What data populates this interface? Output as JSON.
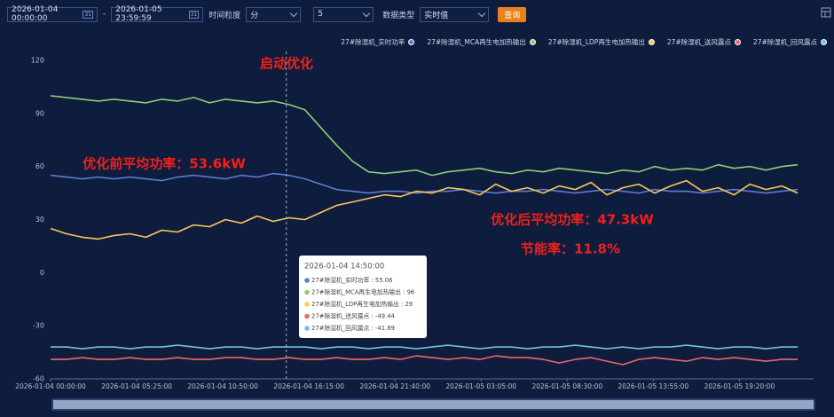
{
  "controls": {
    "start": "2026-01-04 00:00:00",
    "end": "2026-01-05 23:59:59",
    "calendar_icon": "31",
    "granularity_label": "时间粒度",
    "granularity": "分",
    "step": "5",
    "type_label": "数据类型",
    "type": "实时值",
    "query": "查询"
  },
  "chart_data": {
    "type": "line",
    "x": [
      "2026-01-04 00:00:00",
      "2026-01-04 01:00:00",
      "2026-01-04 02:00:00",
      "2026-01-04 03:00:00",
      "2026-01-04 04:00:00",
      "2026-01-04 05:00:00",
      "2026-01-04 06:00:00",
      "2026-01-04 07:00:00",
      "2026-01-04 08:00:00",
      "2026-01-04 09:00:00",
      "2026-01-04 10:00:00",
      "2026-01-04 11:00:00",
      "2026-01-04 12:00:00",
      "2026-01-04 13:00:00",
      "2026-01-04 14:00:00",
      "2026-01-04 15:00:00",
      "2026-01-04 16:00:00",
      "2026-01-04 17:00:00",
      "2026-01-04 18:00:00",
      "2026-01-04 19:00:00",
      "2026-01-04 20:00:00",
      "2026-01-04 21:00:00",
      "2026-01-04 22:00:00",
      "2026-01-04 23:00:00",
      "2026-01-05 00:00:00",
      "2026-01-05 01:00:00",
      "2026-01-05 02:00:00",
      "2026-01-05 03:00:00",
      "2026-01-05 04:00:00",
      "2026-01-05 05:00:00",
      "2026-01-05 06:00:00",
      "2026-01-05 07:00:00",
      "2026-01-05 08:00:00",
      "2026-01-05 09:00:00",
      "2026-01-05 10:00:00",
      "2026-01-05 11:00:00",
      "2026-01-05 12:00:00",
      "2026-01-05 13:00:00",
      "2026-01-05 14:00:00",
      "2026-01-05 15:00:00",
      "2026-01-05 16:00:00",
      "2026-01-05 17:00:00",
      "2026-01-05 18:00:00",
      "2026-01-05 19:00:00",
      "2026-01-05 20:00:00",
      "2026-01-05 21:00:00",
      "2026-01-05 22:00:00",
      "2026-01-05 23:00:00"
    ],
    "series": [
      {
        "name": "27#除湿机_实时功率",
        "color": "#5b7bd5",
        "values": [
          55,
          54,
          53,
          54,
          53,
          54,
          53,
          52,
          54,
          55,
          54,
          53,
          55,
          54,
          56,
          55,
          53,
          50,
          47,
          46,
          45,
          46,
          46,
          45,
          46,
          46,
          47,
          46,
          45,
          46,
          46,
          47,
          46,
          45,
          46,
          47,
          46,
          45,
          47,
          46,
          46,
          45,
          46,
          47,
          46,
          45,
          46,
          47
        ]
      },
      {
        "name": "27#除湿机_MCA再生电加热输出",
        "color": "#91cc75",
        "values": [
          100,
          99,
          98,
          97,
          98,
          97,
          96,
          98,
          97,
          99,
          96,
          98,
          97,
          96,
          97,
          95,
          92,
          82,
          72,
          63,
          57,
          56,
          57,
          58,
          55,
          57,
          58,
          59,
          57,
          56,
          58,
          57,
          59,
          58,
          57,
          56,
          58,
          57,
          60,
          58,
          59,
          58,
          61,
          59,
          60,
          58,
          60,
          61
        ]
      },
      {
        "name": "27#除湿机_LDP再生电加热输出",
        "color": "#fac858",
        "values": [
          25,
          22,
          20,
          19,
          21,
          22,
          20,
          24,
          23,
          27,
          26,
          30,
          28,
          32,
          29,
          31,
          30,
          34,
          38,
          40,
          42,
          44,
          43,
          46,
          45,
          48,
          47,
          44,
          50,
          46,
          48,
          45,
          49,
          47,
          51,
          44,
          48,
          50,
          45,
          49,
          52,
          46,
          48,
          44,
          50,
          47,
          49,
          45
        ]
      },
      {
        "name": "27#除湿机_送风露点",
        "color": "#ee6666",
        "values": [
          -49,
          -49,
          -48,
          -49,
          -49,
          -48,
          -49,
          -49,
          -48,
          -49,
          -49,
          -48,
          -48,
          -49,
          -49,
          -48,
          -49,
          -49,
          -48,
          -49,
          -49,
          -48,
          -49,
          -47,
          -48,
          -49,
          -48,
          -49,
          -47,
          -48,
          -48,
          -49,
          -51,
          -49,
          -48,
          -50,
          -52,
          -49,
          -48,
          -49,
          -50,
          -48,
          -49,
          -48,
          -49,
          -50,
          -49,
          -49
        ]
      },
      {
        "name": "27#除湿机_回风露点",
        "color": "#73c0de",
        "values": [
          -42,
          -42,
          -43,
          -42,
          -42,
          -43,
          -42,
          -42,
          -41,
          -42,
          -43,
          -42,
          -42,
          -43,
          -42,
          -42,
          -42,
          -43,
          -42,
          -42,
          -43,
          -42,
          -42,
          -43,
          -42,
          -41,
          -42,
          -43,
          -42,
          -42,
          -43,
          -42,
          -42,
          -41,
          -42,
          -43,
          -42,
          -43,
          -42,
          -42,
          -41,
          -42,
          -43,
          -42,
          -42,
          -43,
          -42,
          -42
        ]
      }
    ],
    "xlim": [
      "2026-01-04 00:00:00",
      "2026-01-05 23:59:59"
    ],
    "xticks": [
      "2026-01-04 00:00:00",
      "2026-01-04 05:25:00",
      "2026-01-04 10:50:00",
      "2026-01-04 16:15:00",
      "2026-01-04 21:40:00",
      "2026-01-05 03:05:00",
      "2026-01-05 08:30:00",
      "2026-01-05 13:55:00",
      "2026-01-05 19:20:00"
    ],
    "ylim": [
      -60,
      120
    ],
    "yticks": [
      -60,
      -30,
      0,
      30,
      60,
      90,
      120
    ],
    "grid": false,
    "legend": "top-right",
    "annotations": [
      "启动优化",
      "优化前平均功率：53.6kW",
      "优化后平均功率：47.3kW",
      "节能率：11.8%"
    ],
    "tooltip": {
      "x": "2026-01-04 14:50:00",
      "items": [
        "27#除湿机_实时功率 : 55.06",
        "27#除湿机_MCA再生电加热输出 : 96",
        "27#除湿机_LDP再生电加热输出 : 29",
        "27#除湿机_送风露点 : -49.44",
        "27#除湿机_回风露点 : -41.89"
      ]
    }
  }
}
